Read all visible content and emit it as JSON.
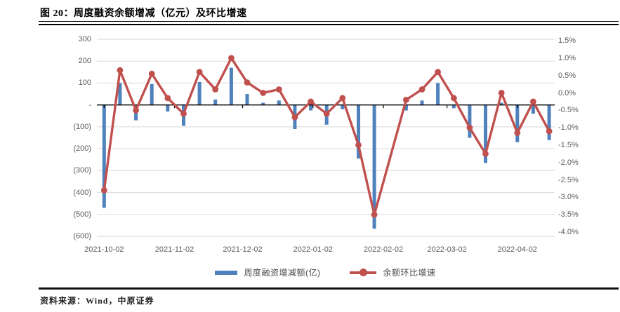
{
  "page": {
    "title_label": "图 20：周度融资余额增减（亿元）及环比增速",
    "source_label": "资料来源：Wind，中原证券"
  },
  "colors": {
    "bar": "#4f81bd",
    "line": "#c0504d",
    "grid": "#d9d9d9",
    "zero_axis": "#000000",
    "axis_text": "#595959"
  },
  "chart_data": {
    "type": "bar+line-combo",
    "title": "周度融资余额增减（亿元）及环比增速",
    "n_points": 29,
    "x_tick_labels": [
      "2021-10-02",
      "2021-11-02",
      "2021-12-02",
      "2022-01-02",
      "2022-02-02",
      "2022-03-02",
      "2022-04-02"
    ],
    "left_axis": {
      "unit": "亿元",
      "max": 300,
      "min": -600,
      "step": 100,
      "ticks": [
        "300",
        "200",
        "100",
        "-",
        "(100)",
        "(200)",
        "(300)",
        "(400)",
        "(500)",
        "(600)"
      ]
    },
    "right_axis": {
      "unit": "%",
      "max": 1.5,
      "min": -4.0,
      "step": 0.5,
      "ticks": [
        "1.5%",
        "1.0%",
        "0.5%",
        "0.0%",
        "-0.5%",
        "-1.0%",
        "-1.5%",
        "-2.0%",
        "-2.5%",
        "-3.0%",
        "-3.5%",
        "-4.0%"
      ]
    },
    "gridlines": true,
    "legend_position": "bottom",
    "series": [
      {
        "name": "周度融资增减额(亿)",
        "type": "bar",
        "axis": "left",
        "values": [
          -470,
          100,
          -70,
          95,
          -30,
          -95,
          105,
          25,
          170,
          50,
          10,
          20,
          -110,
          -25,
          -90,
          -20,
          -245,
          -565,
          null,
          -25,
          20,
          100,
          -15,
          -150,
          -265,
          10,
          -170,
          -40,
          -160
        ]
      },
      {
        "name": "余额环比增速",
        "type": "line",
        "axis": "right",
        "values": [
          -2.8,
          0.65,
          -0.5,
          0.55,
          -0.15,
          -0.6,
          0.6,
          0.1,
          1.0,
          0.3,
          0.0,
          0.1,
          -0.7,
          -0.25,
          -0.6,
          -0.15,
          -1.5,
          -3.5,
          null,
          -0.2,
          0.1,
          0.6,
          -0.15,
          -1.0,
          -1.75,
          0.0,
          -1.15,
          -0.25,
          -1.1
        ]
      }
    ]
  }
}
